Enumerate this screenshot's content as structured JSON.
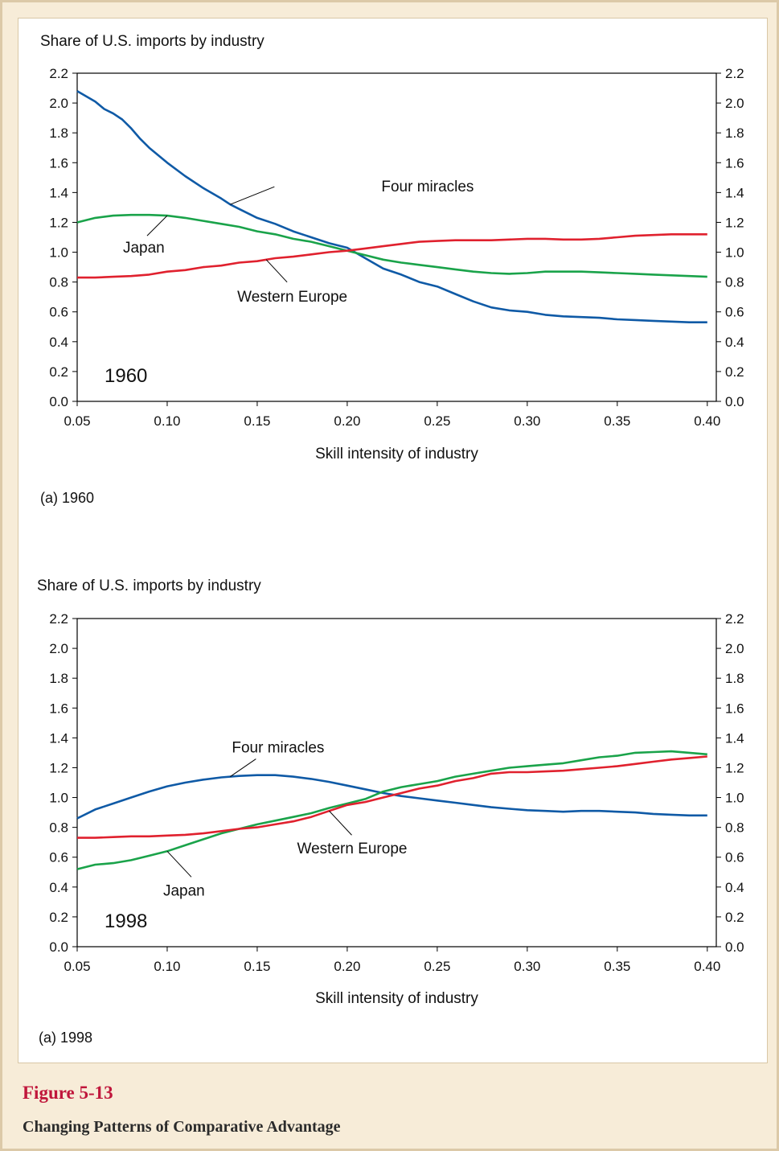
{
  "figure": {
    "number": "Figure 5-13",
    "title": "Changing Patterns of Comparative Advantage"
  },
  "colors": {
    "four_miracles": "#0f5aa6",
    "japan": "#1aa34a",
    "western_europe": "#e0212e"
  },
  "chart_data": [
    {
      "type": "line",
      "ylabel": "Share of U.S. imports by industry",
      "xlabel": "Skill intensity of industry",
      "year_label": "1960",
      "subcaption": "(a) 1960",
      "xlim": [
        0.05,
        0.405
      ],
      "ylim": [
        0.0,
        2.2
      ],
      "x_ticks": [
        "0.05",
        "0.10",
        "0.15",
        "0.20",
        "0.25",
        "0.30",
        "0.35",
        "0.40"
      ],
      "y_ticks": [
        "0.0",
        "0.2",
        "0.4",
        "0.6",
        "0.8",
        "1.0",
        "1.2",
        "1.4",
        "1.6",
        "1.8",
        "2.0",
        "2.2"
      ],
      "right_axis": true,
      "grid": false,
      "series": [
        {
          "name": "Four miracles",
          "color_key": "four_miracles",
          "points": [
            [
              0.05,
              2.08
            ],
            [
              0.06,
              2.01
            ],
            [
              0.065,
              1.96
            ],
            [
              0.07,
              1.93
            ],
            [
              0.075,
              1.89
            ],
            [
              0.08,
              1.83
            ],
            [
              0.085,
              1.76
            ],
            [
              0.09,
              1.7
            ],
            [
              0.1,
              1.6
            ],
            [
              0.11,
              1.51
            ],
            [
              0.12,
              1.43
            ],
            [
              0.13,
              1.36
            ],
            [
              0.135,
              1.32
            ],
            [
              0.14,
              1.29
            ],
            [
              0.15,
              1.23
            ],
            [
              0.16,
              1.19
            ],
            [
              0.17,
              1.14
            ],
            [
              0.18,
              1.1
            ],
            [
              0.19,
              1.06
            ],
            [
              0.2,
              1.03
            ],
            [
              0.21,
              0.96
            ],
            [
              0.22,
              0.89
            ],
            [
              0.23,
              0.85
            ],
            [
              0.24,
              0.8
            ],
            [
              0.25,
              0.77
            ],
            [
              0.26,
              0.72
            ],
            [
              0.27,
              0.67
            ],
            [
              0.28,
              0.63
            ],
            [
              0.29,
              0.61
            ],
            [
              0.3,
              0.6
            ],
            [
              0.31,
              0.58
            ],
            [
              0.32,
              0.57
            ],
            [
              0.33,
              0.565
            ],
            [
              0.34,
              0.56
            ],
            [
              0.35,
              0.55
            ],
            [
              0.36,
              0.545
            ],
            [
              0.37,
              0.54
            ],
            [
              0.38,
              0.535
            ],
            [
              0.39,
              0.53
            ],
            [
              0.4,
              0.53
            ]
          ]
        },
        {
          "name": "Japan",
          "color_key": "japan",
          "points": [
            [
              0.05,
              1.2
            ],
            [
              0.06,
              1.23
            ],
            [
              0.07,
              1.245
            ],
            [
              0.08,
              1.25
            ],
            [
              0.09,
              1.25
            ],
            [
              0.1,
              1.245
            ],
            [
              0.11,
              1.23
            ],
            [
              0.12,
              1.21
            ],
            [
              0.13,
              1.19
            ],
            [
              0.14,
              1.17
            ],
            [
              0.15,
              1.14
            ],
            [
              0.16,
              1.12
            ],
            [
              0.17,
              1.09
            ],
            [
              0.18,
              1.07
            ],
            [
              0.19,
              1.04
            ],
            [
              0.2,
              1.01
            ],
            [
              0.21,
              0.98
            ],
            [
              0.22,
              0.95
            ],
            [
              0.23,
              0.93
            ],
            [
              0.24,
              0.915
            ],
            [
              0.25,
              0.9
            ],
            [
              0.26,
              0.885
            ],
            [
              0.27,
              0.87
            ],
            [
              0.28,
              0.86
            ],
            [
              0.29,
              0.855
            ],
            [
              0.3,
              0.86
            ],
            [
              0.31,
              0.87
            ],
            [
              0.32,
              0.87
            ],
            [
              0.33,
              0.87
            ],
            [
              0.34,
              0.865
            ],
            [
              0.35,
              0.86
            ],
            [
              0.36,
              0.855
            ],
            [
              0.37,
              0.85
            ],
            [
              0.38,
              0.845
            ],
            [
              0.39,
              0.84
            ],
            [
              0.4,
              0.835
            ]
          ]
        },
        {
          "name": "Western Europe",
          "color_key": "western_europe",
          "points": [
            [
              0.05,
              0.83
            ],
            [
              0.06,
              0.83
            ],
            [
              0.07,
              0.835
            ],
            [
              0.08,
              0.84
            ],
            [
              0.09,
              0.85
            ],
            [
              0.1,
              0.87
            ],
            [
              0.11,
              0.88
            ],
            [
              0.12,
              0.9
            ],
            [
              0.13,
              0.91
            ],
            [
              0.14,
              0.93
            ],
            [
              0.15,
              0.94
            ],
            [
              0.16,
              0.96
            ],
            [
              0.17,
              0.97
            ],
            [
              0.18,
              0.985
            ],
            [
              0.19,
              1.0
            ],
            [
              0.2,
              1.01
            ],
            [
              0.21,
              1.025
            ],
            [
              0.22,
              1.04
            ],
            [
              0.23,
              1.055
            ],
            [
              0.24,
              1.07
            ],
            [
              0.25,
              1.075
            ],
            [
              0.26,
              1.08
            ],
            [
              0.27,
              1.08
            ],
            [
              0.28,
              1.08
            ],
            [
              0.29,
              1.085
            ],
            [
              0.3,
              1.09
            ],
            [
              0.31,
              1.09
            ],
            [
              0.32,
              1.085
            ],
            [
              0.33,
              1.085
            ],
            [
              0.34,
              1.09
            ],
            [
              0.35,
              1.1
            ],
            [
              0.36,
              1.11
            ],
            [
              0.37,
              1.115
            ],
            [
              0.38,
              1.12
            ],
            [
              0.39,
              1.12
            ],
            [
              0.4,
              1.12
            ]
          ]
        }
      ],
      "annotations": [
        {
          "text": "Four miracles",
          "series": "Four miracles",
          "at_x": 0.135
        },
        {
          "text": "Japan",
          "series": "Japan",
          "at_x": 0.1
        },
        {
          "text": "Western Europe",
          "series": "Western Europe",
          "at_x": 0.155
        }
      ]
    },
    {
      "type": "line",
      "ylabel": "Share of U.S. imports by industry",
      "xlabel": "Skill intensity of industry",
      "year_label": "1998",
      "subcaption": "(a) 1998",
      "xlim": [
        0.05,
        0.405
      ],
      "ylim": [
        0.0,
        2.2
      ],
      "x_ticks": [
        "0.05",
        "0.10",
        "0.15",
        "0.20",
        "0.25",
        "0.30",
        "0.35",
        "0.40"
      ],
      "y_ticks": [
        "0.0",
        "0.2",
        "0.4",
        "0.6",
        "0.8",
        "1.0",
        "1.2",
        "1.4",
        "1.6",
        "1.8",
        "2.0",
        "2.2"
      ],
      "right_axis": true,
      "grid": false,
      "series": [
        {
          "name": "Four miracles",
          "color_key": "four_miracles",
          "points": [
            [
              0.05,
              0.86
            ],
            [
              0.06,
              0.92
            ],
            [
              0.07,
              0.96
            ],
            [
              0.08,
              1.0
            ],
            [
              0.09,
              1.04
            ],
            [
              0.1,
              1.075
            ],
            [
              0.11,
              1.1
            ],
            [
              0.12,
              1.12
            ],
            [
              0.13,
              1.135
            ],
            [
              0.14,
              1.145
            ],
            [
              0.15,
              1.15
            ],
            [
              0.16,
              1.15
            ],
            [
              0.17,
              1.14
            ],
            [
              0.18,
              1.125
            ],
            [
              0.19,
              1.105
            ],
            [
              0.2,
              1.08
            ],
            [
              0.21,
              1.055
            ],
            [
              0.22,
              1.03
            ],
            [
              0.23,
              1.01
            ],
            [
              0.24,
              0.995
            ],
            [
              0.25,
              0.98
            ],
            [
              0.26,
              0.965
            ],
            [
              0.27,
              0.95
            ],
            [
              0.28,
              0.935
            ],
            [
              0.29,
              0.925
            ],
            [
              0.3,
              0.915
            ],
            [
              0.31,
              0.91
            ],
            [
              0.32,
              0.905
            ],
            [
              0.33,
              0.91
            ],
            [
              0.34,
              0.91
            ],
            [
              0.35,
              0.905
            ],
            [
              0.36,
              0.9
            ],
            [
              0.37,
              0.89
            ],
            [
              0.38,
              0.885
            ],
            [
              0.39,
              0.88
            ],
            [
              0.4,
              0.88
            ]
          ]
        },
        {
          "name": "Japan",
          "color_key": "japan",
          "points": [
            [
              0.05,
              0.52
            ],
            [
              0.06,
              0.55
            ],
            [
              0.07,
              0.56
            ],
            [
              0.08,
              0.58
            ],
            [
              0.09,
              0.61
            ],
            [
              0.1,
              0.64
            ],
            [
              0.11,
              0.68
            ],
            [
              0.12,
              0.72
            ],
            [
              0.13,
              0.76
            ],
            [
              0.14,
              0.79
            ],
            [
              0.15,
              0.82
            ],
            [
              0.16,
              0.845
            ],
            [
              0.17,
              0.87
            ],
            [
              0.18,
              0.895
            ],
            [
              0.19,
              0.93
            ],
            [
              0.2,
              0.96
            ],
            [
              0.21,
              0.99
            ],
            [
              0.22,
              1.04
            ],
            [
              0.23,
              1.07
            ],
            [
              0.24,
              1.09
            ],
            [
              0.25,
              1.11
            ],
            [
              0.26,
              1.14
            ],
            [
              0.27,
              1.16
            ],
            [
              0.28,
              1.18
            ],
            [
              0.29,
              1.2
            ],
            [
              0.3,
              1.21
            ],
            [
              0.31,
              1.22
            ],
            [
              0.32,
              1.23
            ],
            [
              0.33,
              1.25
            ],
            [
              0.34,
              1.27
            ],
            [
              0.35,
              1.28
            ],
            [
              0.36,
              1.3
            ],
            [
              0.37,
              1.305
            ],
            [
              0.38,
              1.31
            ],
            [
              0.39,
              1.3
            ],
            [
              0.4,
              1.29
            ]
          ]
        },
        {
          "name": "Western Europe",
          "color_key": "western_europe",
          "points": [
            [
              0.05,
              0.73
            ],
            [
              0.06,
              0.73
            ],
            [
              0.07,
              0.735
            ],
            [
              0.08,
              0.74
            ],
            [
              0.09,
              0.74
            ],
            [
              0.1,
              0.745
            ],
            [
              0.11,
              0.75
            ],
            [
              0.12,
              0.76
            ],
            [
              0.13,
              0.775
            ],
            [
              0.14,
              0.79
            ],
            [
              0.15,
              0.8
            ],
            [
              0.16,
              0.82
            ],
            [
              0.17,
              0.84
            ],
            [
              0.18,
              0.87
            ],
            [
              0.19,
              0.91
            ],
            [
              0.2,
              0.95
            ],
            [
              0.21,
              0.97
            ],
            [
              0.22,
              1.0
            ],
            [
              0.23,
              1.03
            ],
            [
              0.24,
              1.06
            ],
            [
              0.25,
              1.08
            ],
            [
              0.26,
              1.11
            ],
            [
              0.27,
              1.13
            ],
            [
              0.28,
              1.16
            ],
            [
              0.29,
              1.17
            ],
            [
              0.3,
              1.17
            ],
            [
              0.31,
              1.175
            ],
            [
              0.32,
              1.18
            ],
            [
              0.33,
              1.19
            ],
            [
              0.34,
              1.2
            ],
            [
              0.35,
              1.21
            ],
            [
              0.36,
              1.225
            ],
            [
              0.37,
              1.24
            ],
            [
              0.38,
              1.255
            ],
            [
              0.39,
              1.265
            ],
            [
              0.4,
              1.275
            ]
          ]
        }
      ],
      "annotations": [
        {
          "text": "Four miracles",
          "series": "Four miracles",
          "at_x": 0.135
        },
        {
          "text": "Japan",
          "series": "Japan",
          "at_x": 0.1
        },
        {
          "text": "Western Europe",
          "series": "Western Europe",
          "at_x": 0.19
        }
      ]
    }
  ]
}
